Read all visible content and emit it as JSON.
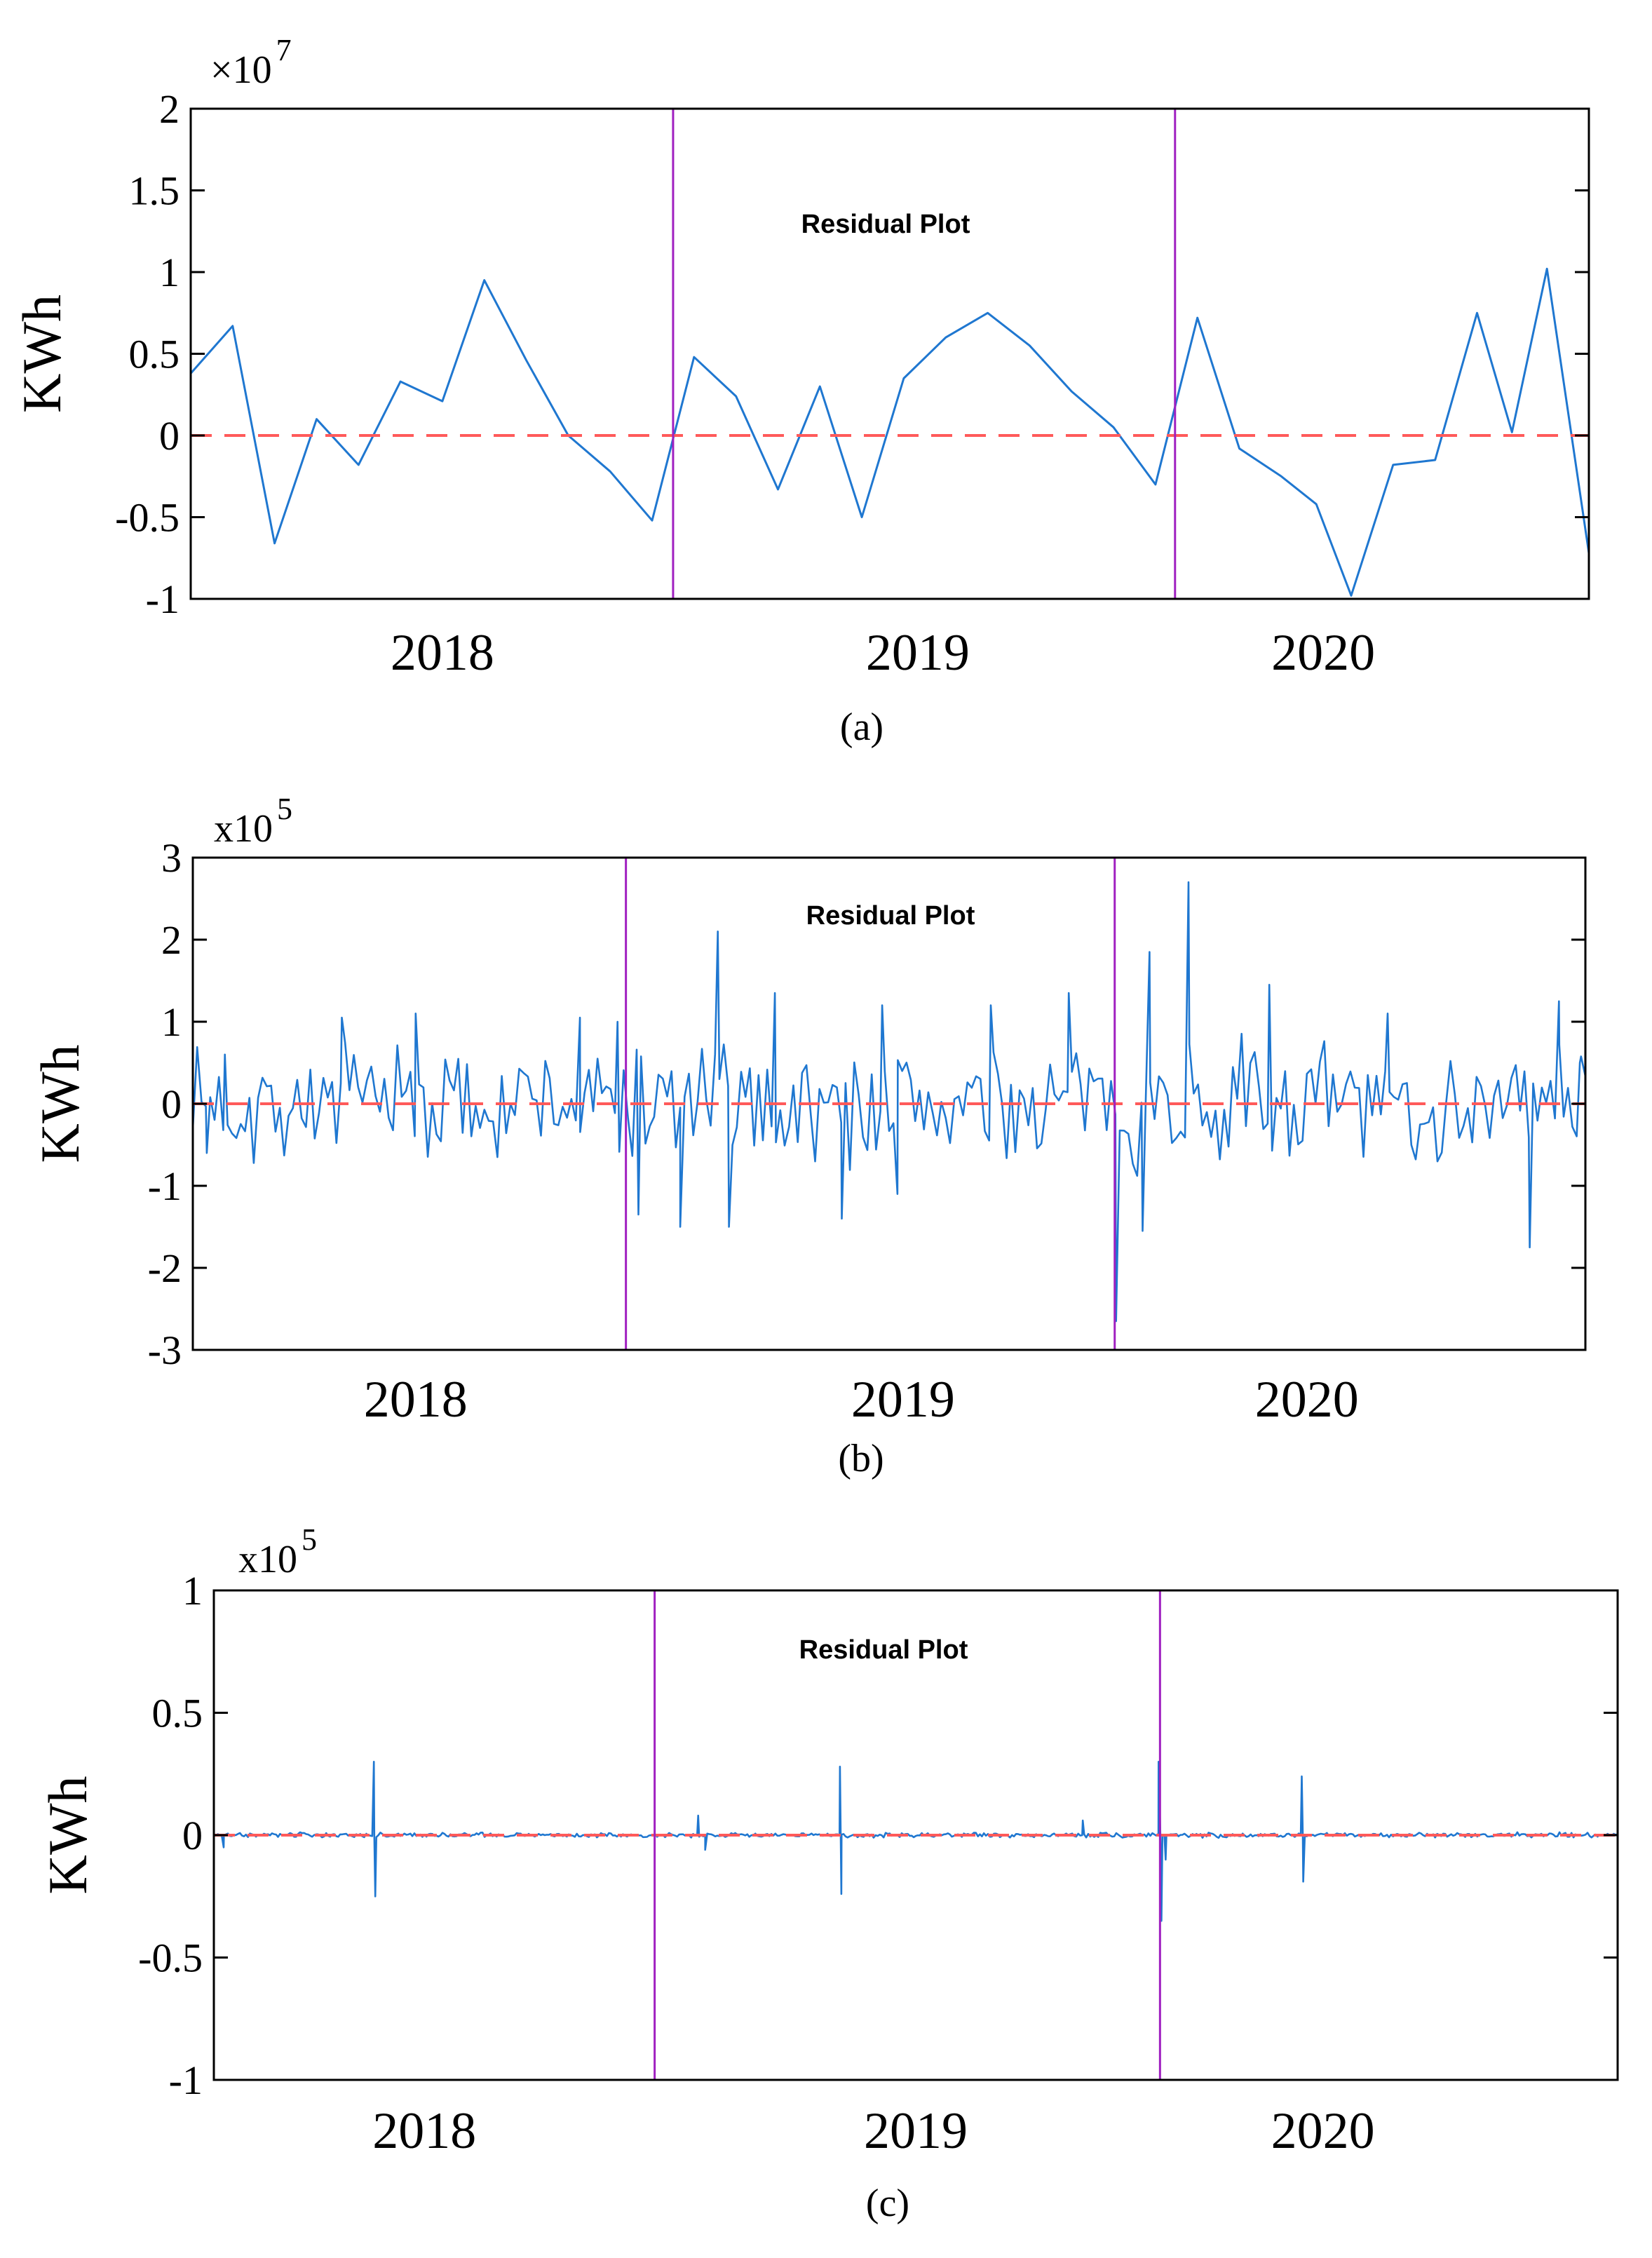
{
  "colors": {
    "series": "#1f77d0",
    "zero_line": "#ff5a5a",
    "separator": "#a020c0",
    "axis": "#000000"
  },
  "chart_data": [
    {
      "type": "line",
      "id": "a",
      "caption": "(a)",
      "title": "Residual Plot",
      "ylabel": "KWh",
      "multiplier_base": "×10",
      "multiplier_exp": "7",
      "ylim": [
        -1,
        2
      ],
      "yticks": [
        -1,
        -0.5,
        0,
        0.5,
        1,
        1.5,
        2
      ],
      "ytick_labels": [
        "-1",
        "-0.5",
        "0",
        "0.5",
        "1",
        "1.5",
        "2"
      ],
      "xlim": [
        0,
        100
      ],
      "year_labels": [
        {
          "text": "2018",
          "x": 18
        },
        {
          "text": "2019",
          "x": 52
        },
        {
          "text": "2020",
          "x": 81
        }
      ],
      "separators_x": [
        34.5,
        70.4
      ],
      "zero_line": 0,
      "mode": "points",
      "series": [
        {
          "name": "residual",
          "x": [
            0,
            3,
            6,
            9,
            12,
            15,
            18,
            21,
            24,
            27,
            30,
            33,
            36,
            39,
            42,
            45,
            48,
            51,
            54,
            57,
            60,
            63,
            66,
            69,
            72,
            75,
            78,
            80.5,
            83,
            86,
            89,
            92,
            94.5,
            97,
            100
          ],
          "values": [
            0.38,
            0.67,
            -0.66,
            0.1,
            -0.18,
            0.33,
            0.21,
            0.95,
            0.46,
            0.0,
            -0.22,
            -0.52,
            0.48,
            0.24,
            -0.33,
            0.3,
            -0.5,
            0.35,
            0.6,
            0.75,
            0.55,
            0.27,
            0.05,
            -0.3,
            0.72,
            -0.08,
            -0.25,
            -0.42,
            -0.98,
            -0.18,
            -0.15,
            0.75,
            0.02,
            1.02,
            -0.72
          ]
        }
      ]
    },
    {
      "type": "line",
      "id": "b",
      "caption": "(b)",
      "title": "Residual Plot",
      "ylabel": "KWh",
      "multiplier_base": "x10",
      "multiplier_exp": "5",
      "ylim": [
        -3,
        3
      ],
      "yticks": [
        -3,
        -2,
        -1,
        0,
        1,
        2,
        3
      ],
      "ytick_labels": [
        "-3",
        "-2",
        "-1",
        "0",
        "1",
        "2",
        "3"
      ],
      "xlim": [
        0,
        100
      ],
      "year_labels": [
        {
          "text": "2018",
          "x": 16
        },
        {
          "text": "2019",
          "x": 51
        },
        {
          "text": "2020",
          "x": 80
        }
      ],
      "separators_x": [
        31.1,
        66.2
      ],
      "zero_line": 0,
      "mode": "noisy",
      "noise": {
        "count": 320,
        "amplitude": 0.9,
        "seed": 7
      },
      "spikes": [
        {
          "x": 0.0,
          "y": -0.3
        },
        {
          "x": 1.0,
          "y": -0.6
        },
        {
          "x": 2.3,
          "y": 0.6
        },
        {
          "x": 10.7,
          "y": 1.05
        },
        {
          "x": 16.0,
          "y": 1.1
        },
        {
          "x": 27.8,
          "y": 1.05
        },
        {
          "x": 30.5,
          "y": 1.0
        },
        {
          "x": 32.0,
          "y": -1.35
        },
        {
          "x": 35.0,
          "y": -1.5
        },
        {
          "x": 37.7,
          "y": 2.1
        },
        {
          "x": 38.5,
          "y": -1.5
        },
        {
          "x": 41.8,
          "y": 1.35
        },
        {
          "x": 46.6,
          "y": -1.4
        },
        {
          "x": 49.5,
          "y": 1.2
        },
        {
          "x": 50.6,
          "y": -1.1
        },
        {
          "x": 57.3,
          "y": 1.2
        },
        {
          "x": 62.9,
          "y": 1.35
        },
        {
          "x": 66.3,
          "y": -2.65
        },
        {
          "x": 68.2,
          "y": -1.55
        },
        {
          "x": 68.7,
          "y": 1.85
        },
        {
          "x": 71.5,
          "y": 2.7
        },
        {
          "x": 77.3,
          "y": 1.45
        },
        {
          "x": 85.8,
          "y": 1.1
        },
        {
          "x": 96.0,
          "y": -1.75
        },
        {
          "x": 98.1,
          "y": 1.25
        },
        {
          "x": 99.6,
          "y": 0.5
        }
      ]
    },
    {
      "type": "line",
      "id": "c",
      "caption": "(c)",
      "title": "Residual Plot",
      "ylabel": "KWh",
      "multiplier_base": "x10",
      "multiplier_exp": "5",
      "ylim": [
        -1,
        1
      ],
      "yticks": [
        -1,
        -0.5,
        0,
        0.5,
        1
      ],
      "ytick_labels": [
        "-1",
        "-0.5",
        "0",
        "0.5",
        "1"
      ],
      "xlim": [
        0,
        100
      ],
      "year_labels": [
        {
          "text": "2018",
          "x": 15
        },
        {
          "text": "2019",
          "x": 50
        },
        {
          "text": "2020",
          "x": 79
        }
      ],
      "separators_x": [
        31.4,
        67.4
      ],
      "zero_line": 0,
      "mode": "noisy",
      "noise": {
        "count": 700,
        "amplitude": 0.012,
        "seed": 3
      },
      "spikes": [
        {
          "x": 0.7,
          "y": -0.05
        },
        {
          "x": 11.4,
          "y": 0.3
        },
        {
          "x": 11.5,
          "y": -0.25
        },
        {
          "x": 34.5,
          "y": 0.08
        },
        {
          "x": 35.0,
          "y": -0.06
        },
        {
          "x": 44.6,
          "y": 0.28
        },
        {
          "x": 44.7,
          "y": -0.24
        },
        {
          "x": 61.9,
          "y": 0.06
        },
        {
          "x": 67.3,
          "y": 0.3
        },
        {
          "x": 67.5,
          "y": -0.35
        },
        {
          "x": 67.8,
          "y": -0.1
        },
        {
          "x": 77.5,
          "y": 0.24
        },
        {
          "x": 77.6,
          "y": -0.19
        }
      ]
    }
  ]
}
